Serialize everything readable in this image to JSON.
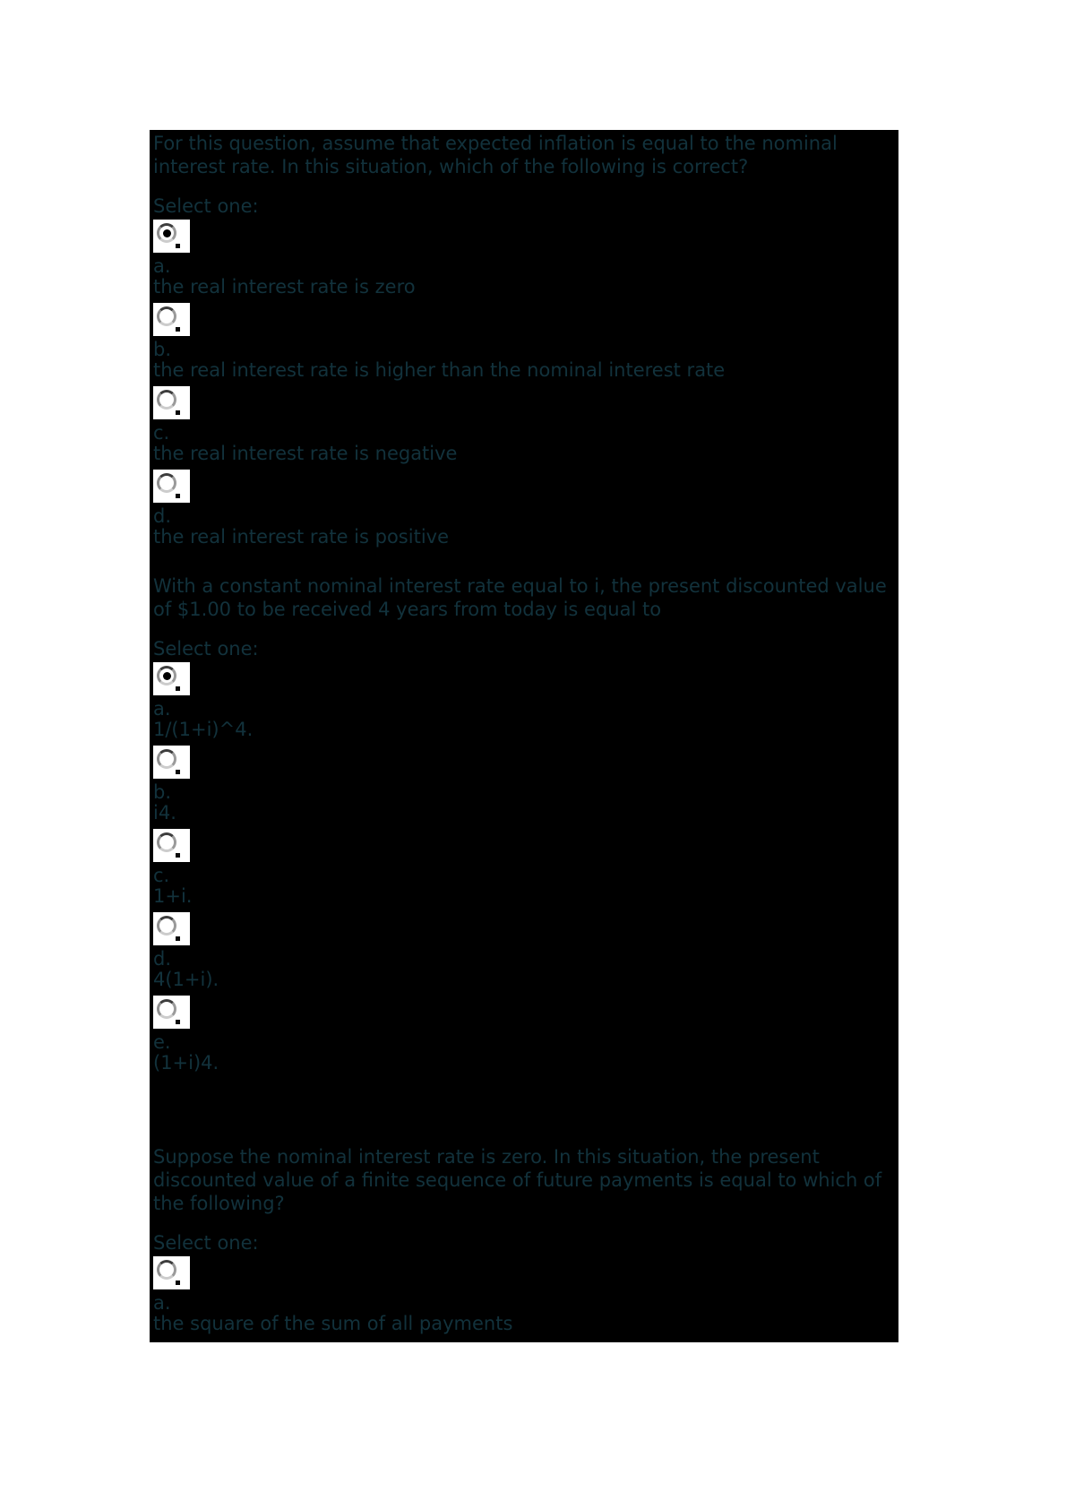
{
  "page": {
    "background_color": "#ffffff",
    "panel_background_color": "#000000",
    "text_color": "#12323c"
  },
  "quiz": {
    "select_one_label": "Select one:",
    "questions": [
      {
        "text": "For this question, assume that expected inflation is equal to the nominal interest rate. In this situation, which of the following is correct?",
        "options": [
          {
            "letter": "a.",
            "text": "the real interest rate is zero",
            "selected": true
          },
          {
            "letter": "b.",
            "text": "the real interest rate is higher than the nominal interest rate",
            "selected": false
          },
          {
            "letter": "c.",
            "text": "the real interest rate is negative",
            "selected": false
          },
          {
            "letter": "d.",
            "text": "the real interest rate is positive",
            "selected": false
          }
        ]
      },
      {
        "text": "With a constant nominal interest rate equal to i, the present discounted value of $1.00 to be received 4 years from today is equal to",
        "options": [
          {
            "letter": "a.",
            "text": "1/(1+i)^4.",
            "selected": true
          },
          {
            "letter": "b.",
            "text": "i4.",
            "selected": false
          },
          {
            "letter": "c.",
            "text": "1+i.",
            "selected": false
          },
          {
            "letter": "d.",
            "text": "4(1+i).",
            "selected": false
          },
          {
            "letter": "e.",
            "text": "(1+i)4.",
            "selected": false
          }
        ]
      },
      {
        "text": "Suppose the nominal interest rate is zero. In this situation, the present discounted value of a finite sequence of future payments is equal to which of the following?",
        "options": [
          {
            "letter": "a.",
            "text": "the square of the sum of all payments",
            "selected": false
          }
        ]
      }
    ]
  }
}
